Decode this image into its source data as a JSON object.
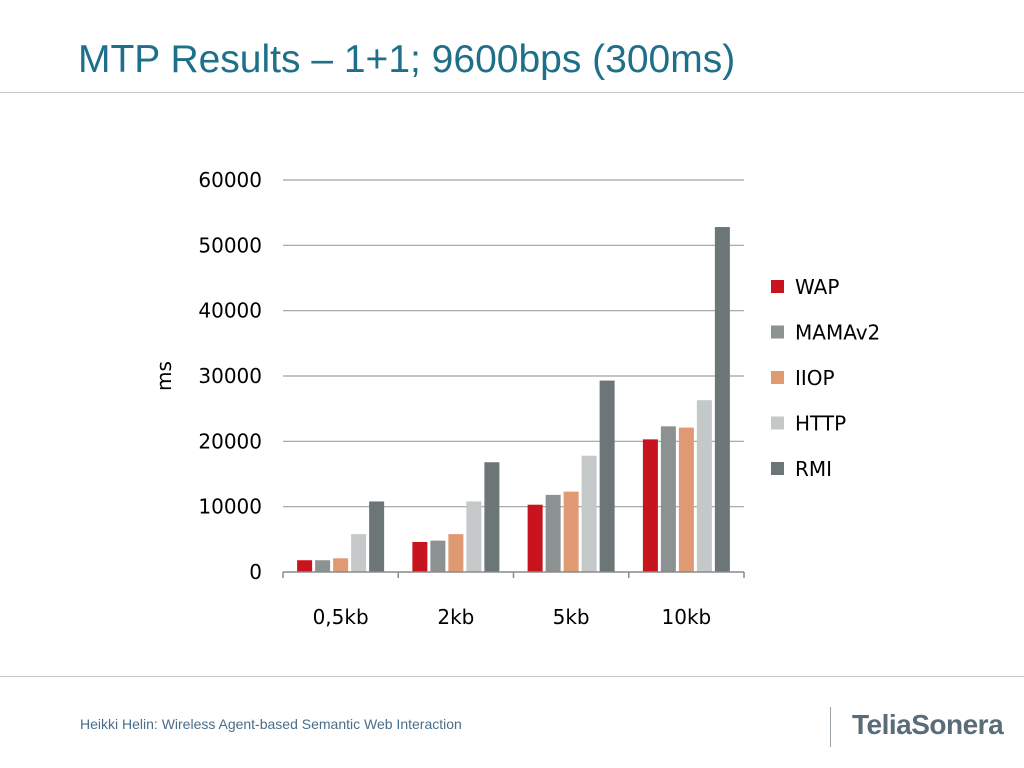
{
  "slide": {
    "title": "MTP Results – 1+1; 9600bps (300ms)",
    "footer": "Heikki Helin: Wireless Agent-based Semantic Web Interaction",
    "logo_text": "TeliaSonera"
  },
  "colors": {
    "title": "#1d6f8a",
    "WAP": "#c8141e",
    "MAMAv2": "#8c9191",
    "IIOP": "#e09a73",
    "HTTP": "#c4c8c8",
    "RMI": "#6d7676",
    "gridline": "#a0a0a0"
  },
  "chart_data": {
    "type": "bar",
    "categories": [
      "0,5kb",
      "2kb",
      "5kb",
      "10kb"
    ],
    "series": [
      {
        "name": "WAP",
        "values": [
          1800,
          4600,
          10300,
          20300
        ]
      },
      {
        "name": "MAMAv2",
        "values": [
          1800,
          4800,
          11800,
          22300
        ]
      },
      {
        "name": "IIOP",
        "values": [
          2100,
          5800,
          12300,
          22100
        ]
      },
      {
        "name": "HTTP",
        "values": [
          5800,
          10800,
          17800,
          26300
        ]
      },
      {
        "name": "RMI",
        "values": [
          10800,
          16800,
          29300,
          52800
        ]
      }
    ],
    "title": "",
    "xlabel": "",
    "ylabel": "ms",
    "ylim": [
      0,
      60000
    ],
    "yticks": [
      "0",
      "10000",
      "20000",
      "30000",
      "40000",
      "50000",
      "60000"
    ],
    "grid": true,
    "legend": "right"
  }
}
